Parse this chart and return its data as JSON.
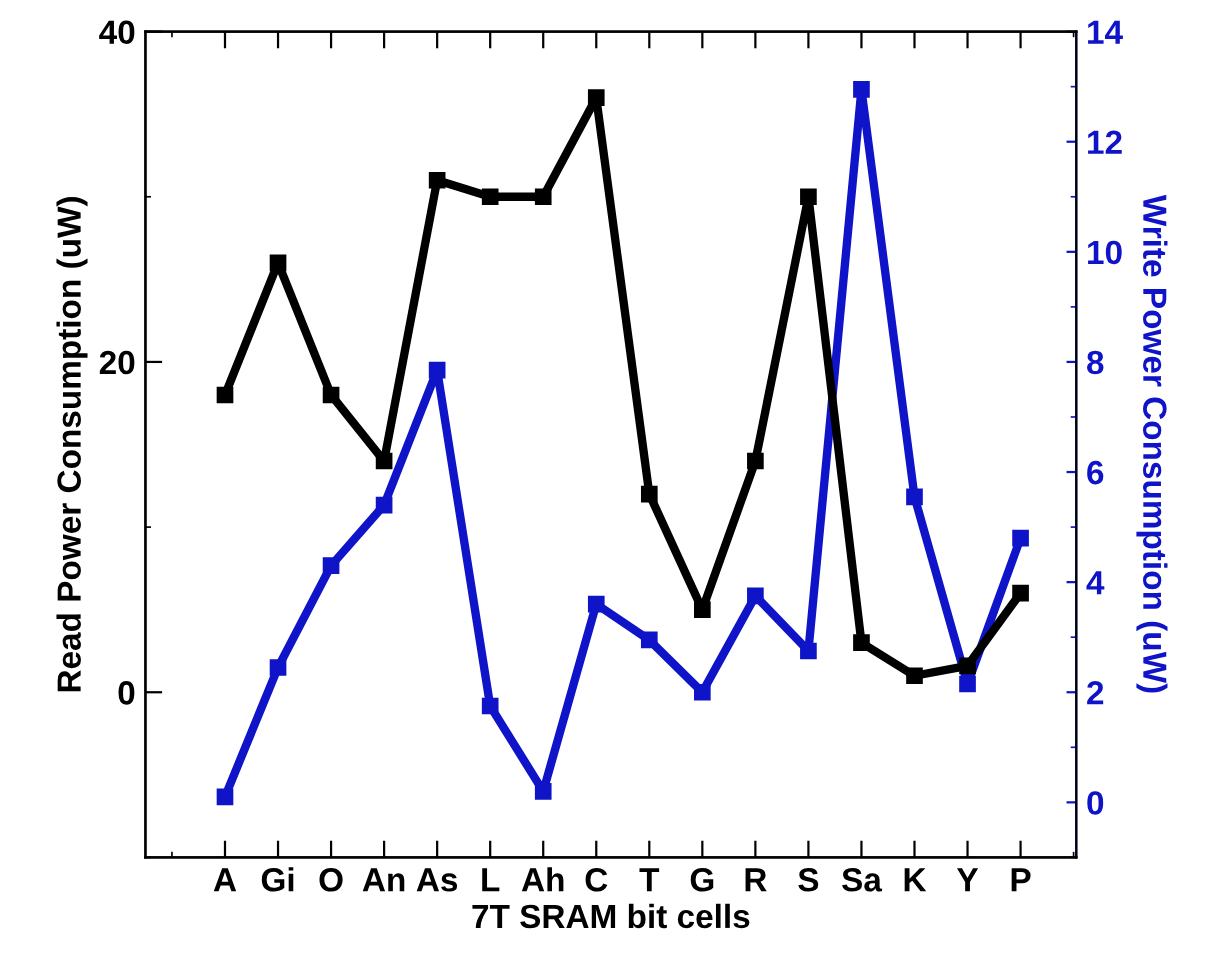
{
  "chart_data": {
    "type": "line",
    "xlabel": "7T SRAM bit cells",
    "ylabel": "Read Power Consumption (uW)",
    "y2label": "Write Power Consumption (uW)",
    "categories": [
      "A",
      "Gi",
      "O",
      "An",
      "As",
      "L",
      "Ah",
      "C",
      "T",
      "G",
      "R",
      "S",
      "Sa",
      "K",
      "Y",
      "P"
    ],
    "series": [
      {
        "color": "#000000",
        "values": [
          18,
          26,
          18,
          14,
          31,
          30,
          30,
          36,
          12,
          5,
          14,
          30,
          3,
          1,
          1.6,
          6
        ]
      },
      {
        "color": "#0f14c8",
        "axis": "y2",
        "values": [
          0.1,
          2.45,
          4.3,
          5.4,
          7.85,
          1.75,
          0.2,
          3.6,
          2.95,
          2,
          3.75,
          2.75,
          12.95,
          5.55,
          2.15,
          4.8
        ]
      }
    ],
    "ylim": [
      -10,
      40
    ],
    "yticks": [
      0,
      20,
      40
    ],
    "y2lim": [
      -1,
      14
    ],
    "y2ticks": [
      0,
      2,
      4,
      6,
      8,
      10,
      12,
      14
    ],
    "marker": "square",
    "line_style": "solid",
    "grid": false,
    "legend": false
  }
}
